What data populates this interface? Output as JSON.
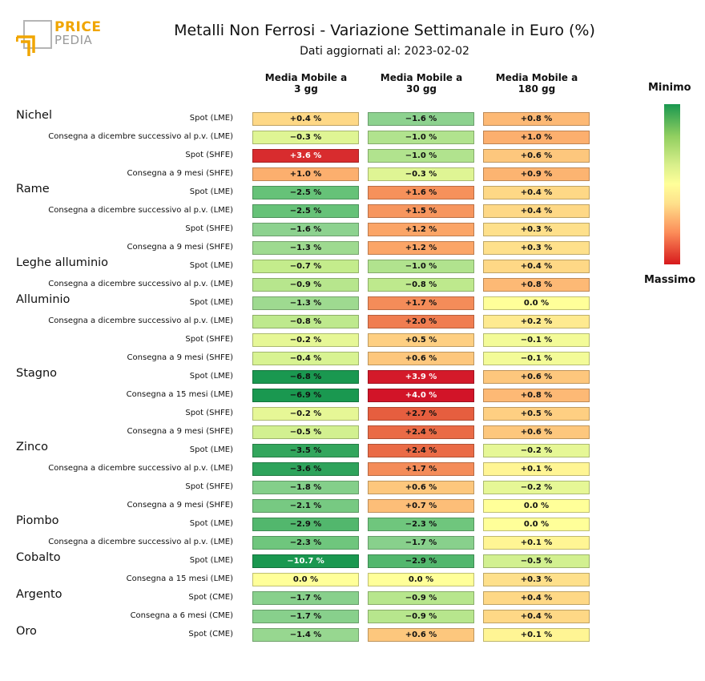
{
  "logo": {
    "text_main": "PRICE",
    "text_sub": "PEDIA"
  },
  "title": "Metalli Non Ferrosi - Variazione Settimanale in Euro (%)",
  "subtitle": "Dati aggiornati al: 2023-02-02",
  "legend": {
    "top_label": "Minimo",
    "bottom_label": "Massimo"
  },
  "columns": [
    {
      "line1": "Media Mobile a",
      "line2": "3 gg"
    },
    {
      "line1": "Media Mobile a",
      "line2": "30 gg"
    },
    {
      "line1": "Media Mobile a",
      "line2": "180 gg"
    }
  ],
  "chart_data": {
    "type": "heatmap",
    "title": "Metalli Non Ferrosi - Variazione Settimanale in Euro (%)",
    "column_labels": [
      "Media Mobile a 3 gg",
      "Media Mobile a 30 gg",
      "Media Mobile a 180 gg"
    ],
    "unit": "%",
    "color_scale": {
      "min_label": "Minimo",
      "max_label": "Massimo",
      "min_color": "#1a9850",
      "mid_color": "#ffff99",
      "max_color": "#d7191c"
    },
    "groups": [
      {
        "metal": "Nichel",
        "rows": [
          {
            "label": "Spot (LME)",
            "values": [
              0.4,
              -1.6,
              0.8
            ],
            "texts": [
              "+0.4 %",
              "−1.6 %",
              "+0.8 %"
            ]
          },
          {
            "label": "Consegna a dicembre successivo al p.v. (LME)",
            "values": [
              -0.3,
              -1.0,
              1.0
            ],
            "texts": [
              "−0.3 %",
              "−1.0 %",
              "+1.0 %"
            ]
          },
          {
            "label": "Spot (SHFE)",
            "values": [
              3.6,
              -1.0,
              0.6
            ],
            "texts": [
              "+3.6 %",
              "−1.0 %",
              "+0.6 %"
            ]
          },
          {
            "label": "Consegna a 9 mesi (SHFE)",
            "values": [
              1.0,
              -0.3,
              0.9
            ],
            "texts": [
              "+1.0 %",
              "−0.3 %",
              "+0.9 %"
            ]
          }
        ]
      },
      {
        "metal": "Rame",
        "rows": [
          {
            "label": "Spot (LME)",
            "values": [
              -2.5,
              1.6,
              0.4
            ],
            "texts": [
              "−2.5 %",
              "+1.6 %",
              "+0.4 %"
            ]
          },
          {
            "label": "Consegna a dicembre successivo al p.v. (LME)",
            "values": [
              -2.5,
              1.5,
              0.4
            ],
            "texts": [
              "−2.5 %",
              "+1.5 %",
              "+0.4 %"
            ]
          },
          {
            "label": "Spot (SHFE)",
            "values": [
              -1.6,
              1.2,
              0.3
            ],
            "texts": [
              "−1.6 %",
              "+1.2 %",
              "+0.3 %"
            ]
          },
          {
            "label": "Consegna a 9 mesi (SHFE)",
            "values": [
              -1.3,
              1.2,
              0.3
            ],
            "texts": [
              "−1.3 %",
              "+1.2 %",
              "+0.3 %"
            ]
          }
        ]
      },
      {
        "metal": "Leghe alluminio",
        "rows": [
          {
            "label": "Spot (LME)",
            "values": [
              -0.7,
              -1.0,
              0.4
            ],
            "texts": [
              "−0.7 %",
              "−1.0 %",
              "+0.4 %"
            ]
          },
          {
            "label": "Consegna a dicembre successivo al p.v. (LME)",
            "values": [
              -0.9,
              -0.8,
              0.8
            ],
            "texts": [
              "−0.9 %",
              "−0.8 %",
              "+0.8 %"
            ]
          }
        ]
      },
      {
        "metal": "Alluminio",
        "rows": [
          {
            "label": "Spot (LME)",
            "values": [
              -1.3,
              1.7,
              0.0
            ],
            "texts": [
              "−1.3 %",
              "+1.7 %",
              "0.0 %"
            ]
          },
          {
            "label": "Consegna a dicembre successivo al p.v. (LME)",
            "values": [
              -0.8,
              2.0,
              0.2
            ],
            "texts": [
              "−0.8 %",
              "+2.0 %",
              "+0.2 %"
            ]
          },
          {
            "label": "Spot (SHFE)",
            "values": [
              -0.2,
              0.5,
              -0.1
            ],
            "texts": [
              "−0.2 %",
              "+0.5 %",
              "−0.1 %"
            ]
          },
          {
            "label": "Consegna a 9 mesi (SHFE)",
            "values": [
              -0.4,
              0.6,
              -0.1
            ],
            "texts": [
              "−0.4 %",
              "+0.6 %",
              "−0.1 %"
            ]
          }
        ]
      },
      {
        "metal": "Stagno",
        "rows": [
          {
            "label": "Spot (LME)",
            "values": [
              -6.8,
              3.9,
              0.6
            ],
            "texts": [
              "−6.8 %",
              "+3.9 %",
              "+0.6 %"
            ]
          },
          {
            "label": "Consegna a 15 mesi (LME)",
            "values": [
              -6.9,
              4.0,
              0.8
            ],
            "texts": [
              "−6.9 %",
              "+4.0 %",
              "+0.8 %"
            ]
          },
          {
            "label": "Spot (SHFE)",
            "values": [
              -0.2,
              2.7,
              0.5
            ],
            "texts": [
              "−0.2 %",
              "+2.7 %",
              "+0.5 %"
            ]
          },
          {
            "label": "Consegna a 9 mesi (SHFE)",
            "values": [
              -0.5,
              2.4,
              0.6
            ],
            "texts": [
              "−0.5 %",
              "+2.4 %",
              "+0.6 %"
            ]
          }
        ]
      },
      {
        "metal": "Zinco",
        "rows": [
          {
            "label": "Spot (LME)",
            "values": [
              -3.5,
              2.4,
              -0.2
            ],
            "texts": [
              "−3.5 %",
              "+2.4 %",
              "−0.2 %"
            ]
          },
          {
            "label": "Consegna a dicembre successivo al p.v. (LME)",
            "values": [
              -3.6,
              1.7,
              0.1
            ],
            "texts": [
              "−3.6 %",
              "+1.7 %",
              "+0.1 %"
            ]
          },
          {
            "label": "Spot (SHFE)",
            "values": [
              -1.8,
              0.6,
              -0.2
            ],
            "texts": [
              "−1.8 %",
              "+0.6 %",
              "−0.2 %"
            ]
          },
          {
            "label": "Consegna a 9 mesi (SHFE)",
            "values": [
              -2.1,
              0.7,
              0.0
            ],
            "texts": [
              "−2.1 %",
              "+0.7 %",
              "0.0 %"
            ]
          }
        ]
      },
      {
        "metal": "Piombo",
        "rows": [
          {
            "label": "Spot (LME)",
            "values": [
              -2.9,
              -2.3,
              0.0
            ],
            "texts": [
              "−2.9 %",
              "−2.3 %",
              "0.0 %"
            ]
          },
          {
            "label": "Consegna a dicembre successivo al p.v. (LME)",
            "values": [
              -2.3,
              -1.7,
              0.1
            ],
            "texts": [
              "−2.3 %",
              "−1.7 %",
              "+0.1 %"
            ]
          }
        ]
      },
      {
        "metal": "Cobalto",
        "rows": [
          {
            "label": "Spot (LME)",
            "values": [
              -10.7,
              -2.9,
              -0.5
            ],
            "texts": [
              "−10.7 %",
              "−2.9 %",
              "−0.5 %"
            ]
          },
          {
            "label": "Consegna a 15 mesi (LME)",
            "values": [
              0.0,
              0.0,
              0.3
            ],
            "texts": [
              "0.0 %",
              "0.0 %",
              "+0.3 %"
            ]
          }
        ]
      },
      {
        "metal": "Argento",
        "rows": [
          {
            "label": "Spot (CME)",
            "values": [
              -1.7,
              -0.9,
              0.4
            ],
            "texts": [
              "−1.7 %",
              "−0.9 %",
              "+0.4 %"
            ]
          },
          {
            "label": "Consegna a 6 mesi (CME)",
            "values": [
              -1.7,
              -0.9,
              0.4
            ],
            "texts": [
              "−1.7 %",
              "−0.9 %",
              "+0.4 %"
            ]
          }
        ]
      },
      {
        "metal": "Oro",
        "rows": [
          {
            "label": "Spot (CME)",
            "values": [
              -1.4,
              0.6,
              0.1
            ],
            "texts": [
              "−1.4 %",
              "+0.6 %",
              "+0.1 %"
            ]
          }
        ]
      }
    ]
  }
}
